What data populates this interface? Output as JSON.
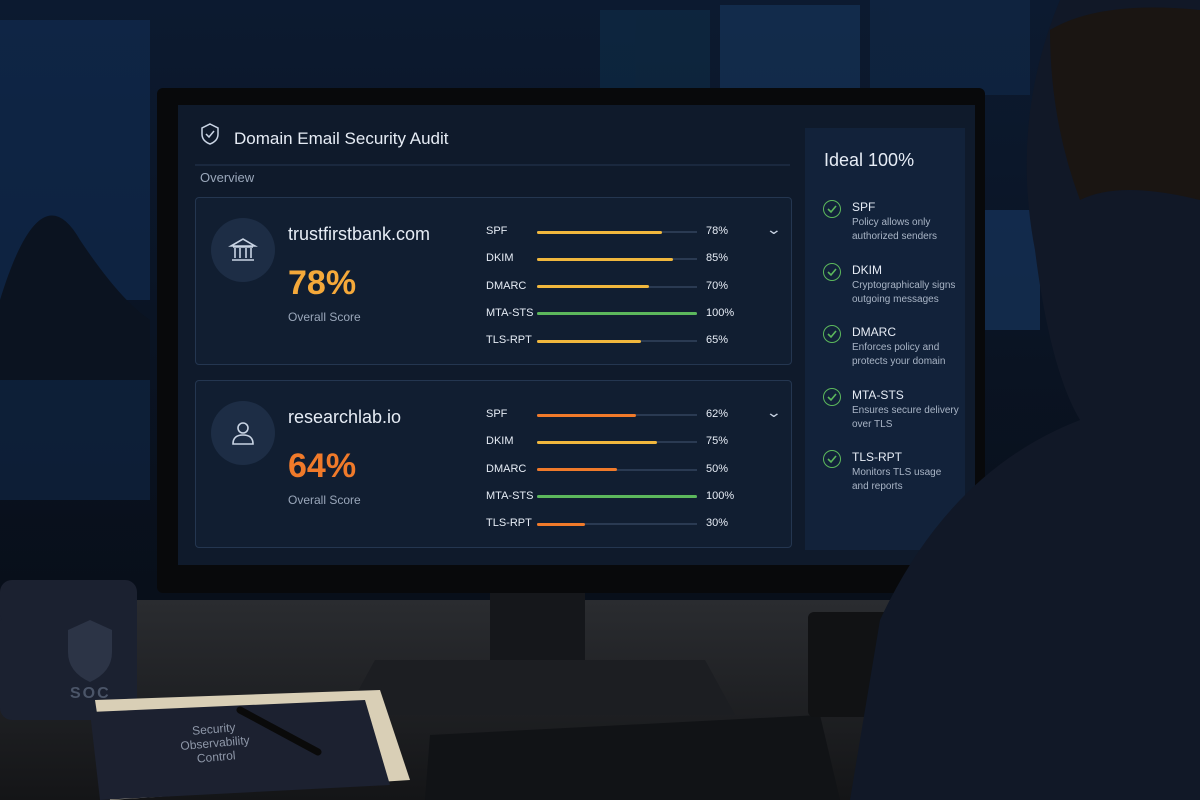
{
  "screen": {
    "title": "Domain Email Security Audit",
    "section": "Overview",
    "domains": [
      {
        "name": "trustfirstbank.com",
        "score": "78%",
        "score_label": "Overall Score",
        "score_color": "#f5a93a",
        "metrics": [
          {
            "name": "SPF",
            "value": 78,
            "label": "78%",
            "color": "#f0b73d"
          },
          {
            "name": "DKIM",
            "value": 85,
            "label": "85%",
            "color": "#f0b73d"
          },
          {
            "name": "DMARC",
            "value": 70,
            "label": "70%",
            "color": "#f0b73d"
          },
          {
            "name": "MTA-STS",
            "value": 100,
            "label": "100%",
            "color": "#5cb85c"
          },
          {
            "name": "TLS-RPT",
            "value": 65,
            "label": "65%",
            "color": "#f0b73d"
          }
        ]
      },
      {
        "name": "researchlab.io",
        "score": "64%",
        "score_label": "Overall Score",
        "score_color": "#f07a2a",
        "metrics": [
          {
            "name": "SPF",
            "value": 62,
            "label": "62%",
            "color": "#f07a2a"
          },
          {
            "name": "DKIM",
            "value": 75,
            "label": "75%",
            "color": "#f0b73d"
          },
          {
            "name": "DMARC",
            "value": 50,
            "label": "50%",
            "color": "#f07a2a"
          },
          {
            "name": "MTA-STS",
            "value": 100,
            "label": "100%",
            "color": "#5cb85c"
          },
          {
            "name": "TLS-RPT",
            "value": 30,
            "label": "30%",
            "color": "#f07a2a"
          }
        ]
      }
    ],
    "sidebar": {
      "title": "Ideal 100%",
      "items": [
        {
          "name": "SPF",
          "description": "Policy allows only authorized senders"
        },
        {
          "name": "DKIM",
          "description": "Cryptographically signs outgoing messages"
        },
        {
          "name": "DMARC",
          "description": "Enforces policy and protects your domain"
        },
        {
          "name": "MTA-STS",
          "description": "Ensures secure delivery over TLS"
        },
        {
          "name": "TLS-RPT",
          "description": "Monitors TLS usage and reports"
        }
      ]
    }
  },
  "desk": {
    "mug": "SOC",
    "notebook": "Security Observability Control"
  }
}
